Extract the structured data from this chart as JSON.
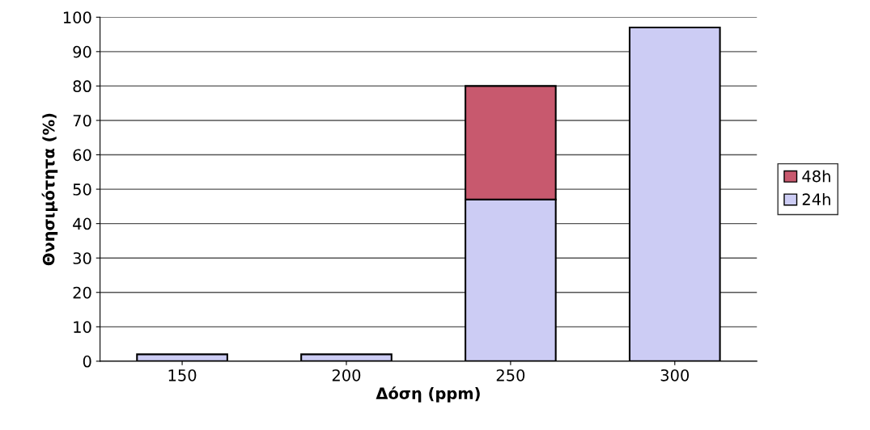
{
  "chart_data": {
    "type": "bar",
    "stacked": true,
    "xlabel": "Δόση (ppm)",
    "ylabel": "Θνησιμότητα (%)",
    "categories": [
      "150",
      "200",
      "250",
      "300"
    ],
    "series": [
      {
        "name": "24h",
        "color": "#ccccf4",
        "values": [
          2,
          2,
          47,
          97
        ]
      },
      {
        "name": "48h",
        "color": "#c8596e",
        "values": [
          null,
          null,
          33,
          null
        ]
      }
    ],
    "ylim": [
      0,
      100
    ],
    "yticks": [
      0,
      10,
      20,
      30,
      40,
      50,
      60,
      70,
      80,
      90,
      100
    ],
    "grid": "y",
    "legend": "right"
  }
}
